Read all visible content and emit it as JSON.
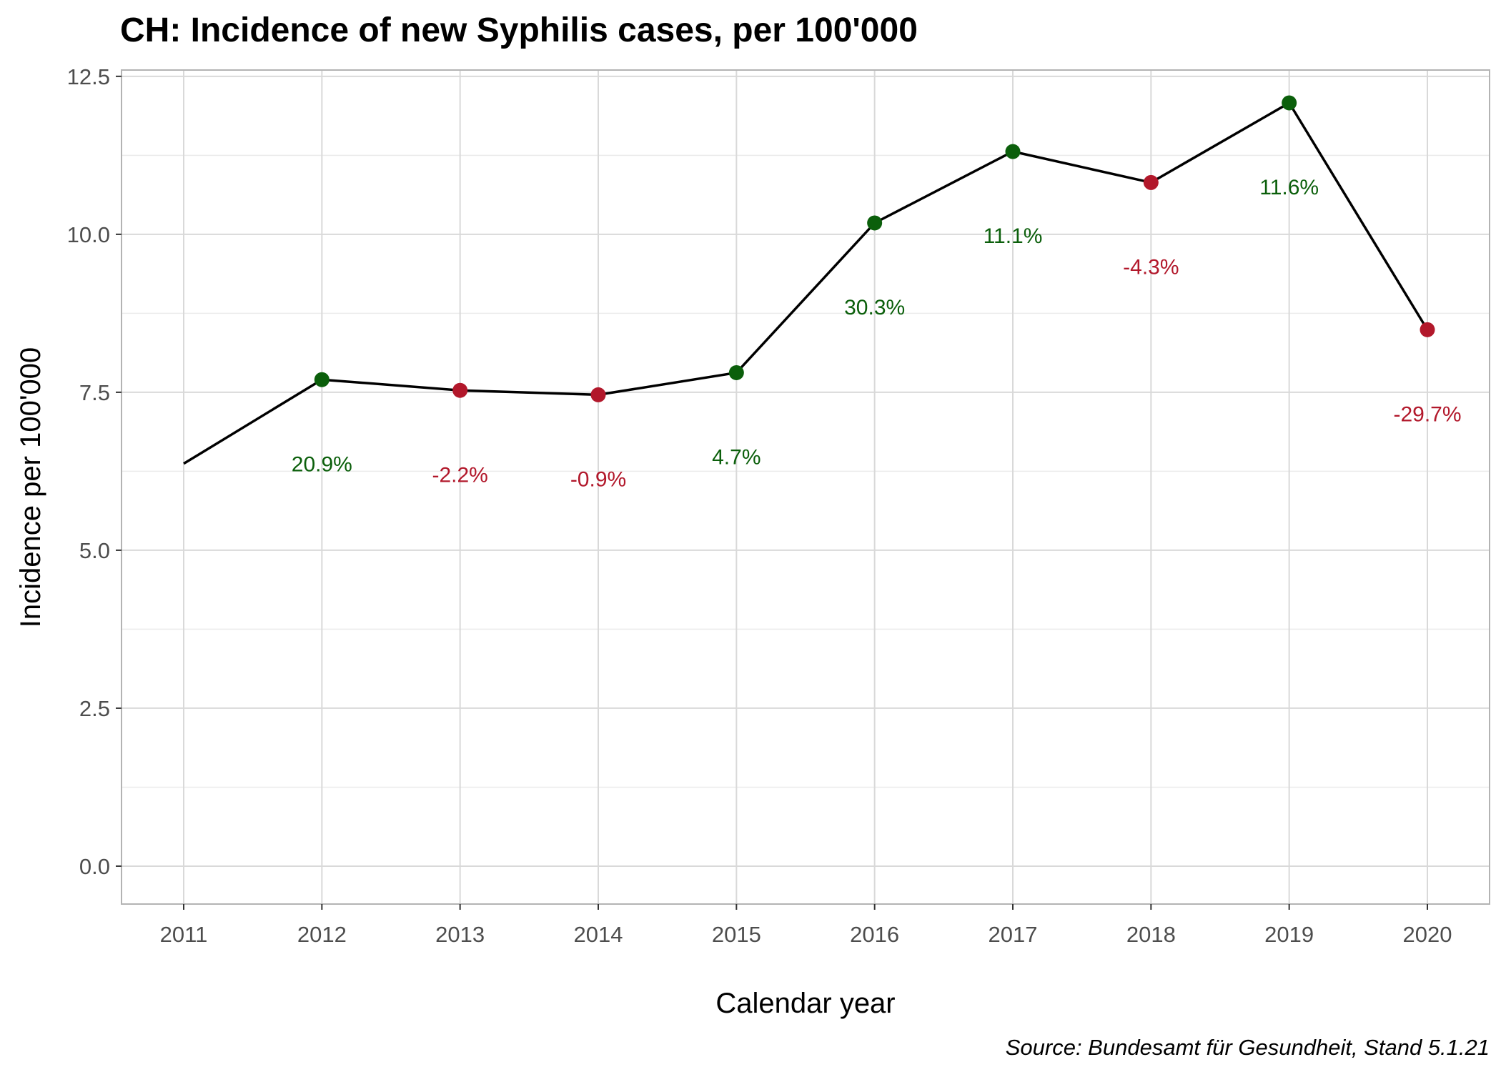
{
  "chart_data": {
    "type": "line",
    "title": "CH: Incidence of new Syphilis cases, per 100'000",
    "xlabel": "Calendar year",
    "ylabel": "Incidence per 100'000",
    "caption": "Source: Bundesamt für Gesundheit, Stand 5.1.21",
    "x": [
      2011,
      2012,
      2013,
      2014,
      2015,
      2016,
      2017,
      2018,
      2019,
      2020
    ],
    "x_tick_labels": [
      "2011",
      "2012",
      "2013",
      "2014",
      "2015",
      "2016",
      "2017",
      "2018",
      "2019",
      "2020"
    ],
    "y": [
      6.37,
      7.7,
      7.53,
      7.46,
      7.81,
      10.18,
      11.31,
      10.82,
      12.08,
      8.49
    ],
    "change_labels": [
      "",
      "20.9%",
      "-2.2%",
      "-0.9%",
      "4.7%",
      "30.3%",
      "11.1%",
      "-4.3%",
      "11.6%",
      "-29.7%"
    ],
    "change_sign": [
      null,
      "up",
      "down",
      "down",
      "up",
      "up",
      "up",
      "down",
      "up",
      "down"
    ],
    "xlim": [
      2010.55,
      2020.45
    ],
    "ylim": [
      -0.6,
      12.6
    ],
    "y_ticks": [
      0.0,
      2.5,
      5.0,
      7.5,
      10.0,
      12.5
    ],
    "y_tick_labels": [
      "0.0",
      "2.5",
      "5.0",
      "7.5",
      "10.0",
      "12.5"
    ],
    "grid": true,
    "legend": "none",
    "colors": {
      "increase": "#0b5f0b",
      "decrease": "#b2182b",
      "line": "#000000",
      "grid_major": "#d9d9d9",
      "grid_minor": "#ebebeb",
      "panel_border": "#b3b3b3"
    }
  }
}
